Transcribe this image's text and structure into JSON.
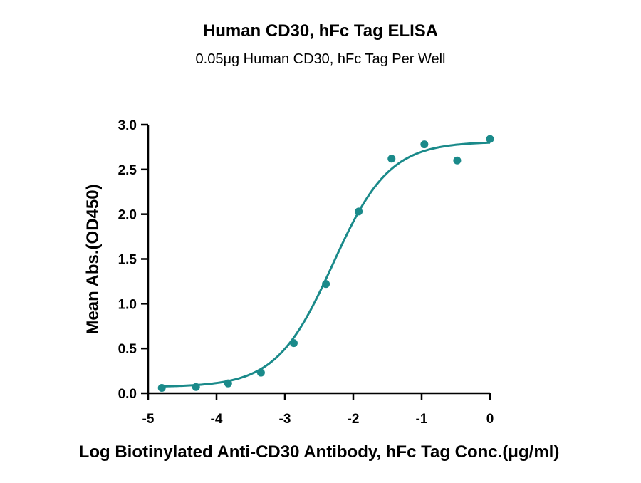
{
  "chart_data": {
    "type": "scatter",
    "title": "Human CD30, hFc Tag ELISA",
    "subtitle": "0.05μg Human CD30, hFc Tag Per Well",
    "xlabel": "Log Biotinylated Anti-CD30 Antibody, hFc Tag Conc.(μg/ml)",
    "ylabel": "Mean Abs.(OD450)",
    "xlim": [
      -5,
      0
    ],
    "ylim": [
      0,
      3.0
    ],
    "x_ticks": [
      "-5",
      "-4",
      "-3",
      "-2",
      "-1",
      "0"
    ],
    "y_ticks": [
      "0.0",
      "0.5",
      "1.0",
      "1.5",
      "2.0",
      "2.5",
      "3.0"
    ],
    "grid": false,
    "color": "#1a8a8a",
    "points": [
      {
        "x": -4.8,
        "y": 0.06
      },
      {
        "x": -4.3,
        "y": 0.07
      },
      {
        "x": -3.83,
        "y": 0.11
      },
      {
        "x": -3.35,
        "y": 0.23
      },
      {
        "x": -2.87,
        "y": 0.56
      },
      {
        "x": -2.4,
        "y": 1.22
      },
      {
        "x": -1.92,
        "y": 2.03
      },
      {
        "x": -1.44,
        "y": 2.62
      },
      {
        "x": -0.96,
        "y": 2.78
      },
      {
        "x": -0.48,
        "y": 2.6
      },
      {
        "x": 0.0,
        "y": 2.84
      }
    ],
    "fit": {
      "model": "4PL",
      "bottom": 0.07,
      "top": 2.81,
      "log_ec50": -2.3,
      "hill_slope": 1.05
    }
  }
}
